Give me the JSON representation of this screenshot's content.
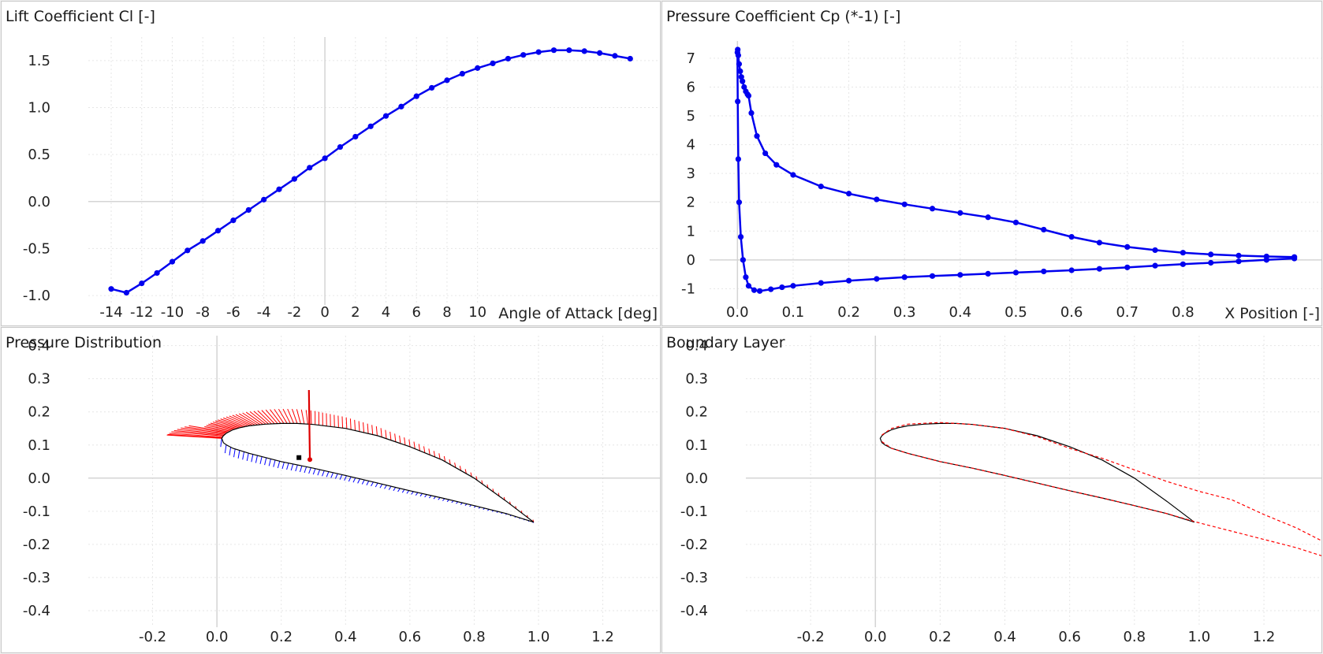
{
  "colors": {
    "series": "#0000ee",
    "suction": "#ff0000",
    "pressure": "#0000ff",
    "airfoil": "#000000",
    "grid": "#e6e6e6",
    "axis": "#d4d4d4"
  },
  "chart_data": [
    {
      "type": "line",
      "title": "Lift Coefficient Cl [-]",
      "xlabel": "Angle of Attack [deg]",
      "ylabel": "",
      "xlim": [
        -15.5,
        22
      ],
      "ylim": [
        -1.1,
        1.75
      ],
      "xticks": [
        -14,
        -12,
        -10,
        -8,
        -6,
        -4,
        -2,
        0,
        2,
        4,
        6,
        8,
        10
      ],
      "yticks": [
        -1.0,
        -0.5,
        0.0,
        0.5,
        1.0,
        1.5
      ],
      "xtick_labels": [
        "-14",
        "-12",
        "-10",
        "-8",
        "-6",
        "-4",
        "-2",
        "0",
        "2",
        "4",
        "6",
        "8",
        "10"
      ],
      "ytick_labels": [
        "-1.0",
        "-0.5",
        "0.0",
        "0.5",
        "1.0",
        "1.5"
      ],
      "grid": true,
      "series": [
        {
          "x": [
            -14.0,
            -13.0,
            -12.0,
            -11.0,
            -10.0,
            -9.0,
            -8.0,
            -7.0,
            -6.0,
            -5.0,
            -4.0,
            -3.0,
            -2.0,
            -1.0,
            0.0,
            1.0,
            2.0,
            3.0,
            4.0,
            5.0,
            6.0,
            7.0,
            8.0,
            9.0,
            10.0,
            11.0,
            12.0,
            13.0,
            14.0,
            15.0,
            16.0,
            17.0,
            18.0,
            19.0,
            20.0
          ],
          "y": [
            -0.93,
            -0.97,
            -0.87,
            -0.76,
            -0.64,
            -0.52,
            -0.42,
            -0.31,
            -0.2,
            -0.09,
            0.02,
            0.13,
            0.24,
            0.36,
            0.46,
            0.58,
            0.69,
            0.8,
            0.91,
            1.01,
            1.12,
            1.21,
            1.29,
            1.36,
            1.42,
            1.47,
            1.52,
            1.56,
            1.59,
            1.61,
            1.61,
            1.6,
            1.58,
            1.55,
            1.52
          ]
        }
      ]
    },
    {
      "type": "line",
      "title": "Pressure Coefficient Cp (*-1) [-]",
      "xlabel": "X Position [-]",
      "ylabel": "",
      "xlim": [
        -0.05,
        1.05
      ],
      "ylim": [
        -1.7,
        7.6
      ],
      "xticks": [
        0.0,
        0.1,
        0.2,
        0.3,
        0.4,
        0.5,
        0.6,
        0.7,
        0.8
      ],
      "yticks": [
        -1,
        0,
        1,
        2,
        3,
        4,
        5,
        6,
        7
      ],
      "xtick_labels": [
        "0.0",
        "0.1",
        "0.2",
        "0.3",
        "0.4",
        "0.5",
        "0.6",
        "0.7",
        "0.8"
      ],
      "ytick_labels": [
        "-1",
        "0",
        "1",
        "2",
        "3",
        "4",
        "5",
        "6",
        "7"
      ],
      "grid": true,
      "series": [
        {
          "name": "upper",
          "x": [
            1.0,
            0.95,
            0.9,
            0.85,
            0.8,
            0.75,
            0.7,
            0.65,
            0.6,
            0.55,
            0.5,
            0.45,
            0.4,
            0.35,
            0.3,
            0.25,
            0.2,
            0.15,
            0.1,
            0.07,
            0.05,
            0.035,
            0.025,
            0.02,
            0.018,
            0.015,
            0.012,
            0.009,
            0.007,
            0.005,
            0.003,
            0.0015,
            0.0005
          ],
          "y": [
            0.1,
            0.12,
            0.15,
            0.19,
            0.25,
            0.34,
            0.45,
            0.6,
            0.8,
            1.05,
            1.3,
            1.48,
            1.63,
            1.78,
            1.93,
            2.1,
            2.3,
            2.55,
            2.95,
            3.3,
            3.7,
            4.3,
            5.1,
            5.7,
            5.75,
            5.85,
            6.0,
            6.2,
            6.35,
            6.55,
            6.8,
            7.1,
            7.3
          ]
        },
        {
          "name": "lower",
          "x": [
            0.0,
            0.0005,
            0.0015,
            0.003,
            0.006,
            0.01,
            0.015,
            0.02,
            0.03,
            0.04,
            0.06,
            0.08,
            0.1,
            0.15,
            0.2,
            0.25,
            0.3,
            0.35,
            0.4,
            0.45,
            0.5,
            0.55,
            0.6,
            0.65,
            0.7,
            0.75,
            0.8,
            0.85,
            0.9,
            0.95,
            1.0
          ],
          "y": [
            7.2,
            5.5,
            3.5,
            2.0,
            0.8,
            0.0,
            -0.6,
            -0.9,
            -1.05,
            -1.08,
            -1.02,
            -0.95,
            -0.9,
            -0.8,
            -0.72,
            -0.66,
            -0.6,
            -0.56,
            -0.52,
            -0.48,
            -0.44,
            -0.4,
            -0.36,
            -0.31,
            -0.26,
            -0.2,
            -0.15,
            -0.1,
            -0.05,
            0.0,
            0.05
          ]
        }
      ]
    },
    {
      "type": "line",
      "title": "Pressure Distribution",
      "xlabel": "",
      "ylabel": "",
      "xlim": [
        -0.4,
        1.38
      ],
      "ylim": [
        -0.45,
        0.43
      ],
      "xticks": [
        -0.2,
        0.0,
        0.2,
        0.4,
        0.6,
        0.8,
        1.0,
        1.2
      ],
      "yticks": [
        -0.4,
        -0.3,
        -0.2,
        -0.1,
        0.0,
        0.1,
        0.2,
        0.3,
        0.4
      ],
      "xtick_labels": [
        "-0.2",
        "0.0",
        "0.2",
        "0.4",
        "0.6",
        "0.8",
        "1.0",
        "1.2"
      ],
      "ytick_labels": [
        "-0.4",
        "-0.3",
        "-0.2",
        "-0.1",
        "0.0",
        "0.1",
        "0.2",
        "0.3",
        "0.4"
      ],
      "grid": true,
      "airfoil_upper": {
        "x": [
          0.985,
          0.9,
          0.8,
          0.7,
          0.6,
          0.5,
          0.4,
          0.3,
          0.25,
          0.2,
          0.15,
          0.1,
          0.07,
          0.05,
          0.03,
          0.02,
          0.015
        ],
        "y": [
          -0.133,
          -0.07,
          0.0,
          0.055,
          0.095,
          0.128,
          0.15,
          0.162,
          0.165,
          0.165,
          0.163,
          0.158,
          0.152,
          0.146,
          0.136,
          0.128,
          0.12
        ]
      },
      "airfoil_lower": {
        "x": [
          0.015,
          0.02,
          0.03,
          0.05,
          0.1,
          0.2,
          0.3,
          0.4,
          0.5,
          0.6,
          0.7,
          0.8,
          0.9,
          0.985
        ],
        "y": [
          0.12,
          0.107,
          0.1,
          0.09,
          0.075,
          0.05,
          0.03,
          0.008,
          -0.015,
          -0.038,
          -0.06,
          -0.083,
          -0.107,
          -0.133
        ]
      },
      "center_of_pressure": [
        0.289,
        0.056
      ],
      "aerodynamic_center": [
        0.255,
        0.062
      ]
    },
    {
      "type": "line",
      "title": "Boundary Layer",
      "xlabel": "",
      "ylabel": "",
      "xlim": [
        -0.4,
        1.38
      ],
      "ylim": [
        -0.45,
        0.43
      ],
      "xticks": [
        -0.2,
        0.0,
        0.2,
        0.4,
        0.6,
        0.8,
        1.0,
        1.2
      ],
      "yticks": [
        -0.4,
        -0.3,
        -0.2,
        -0.1,
        0.0,
        0.1,
        0.2,
        0.3,
        0.4
      ],
      "xtick_labels": [
        "-0.2",
        "0.0",
        "0.2",
        "0.4",
        "0.6",
        "0.8",
        "1.0",
        "1.2"
      ],
      "ytick_labels": [
        "-0.4",
        "-0.3",
        "-0.2",
        "-0.1",
        "0.0",
        "0.1",
        "0.2",
        "0.3",
        "0.4"
      ],
      "grid": true,
      "airfoil_upper": {
        "x": [
          0.985,
          0.9,
          0.8,
          0.7,
          0.6,
          0.5,
          0.4,
          0.3,
          0.25,
          0.2,
          0.15,
          0.1,
          0.07,
          0.05,
          0.03,
          0.02,
          0.015
        ],
        "y": [
          -0.133,
          -0.07,
          0.0,
          0.055,
          0.095,
          0.128,
          0.15,
          0.162,
          0.165,
          0.165,
          0.163,
          0.158,
          0.152,
          0.146,
          0.136,
          0.128,
          0.12
        ]
      },
      "airfoil_lower": {
        "x": [
          0.015,
          0.02,
          0.03,
          0.05,
          0.1,
          0.2,
          0.3,
          0.4,
          0.5,
          0.6,
          0.7,
          0.8,
          0.9,
          0.985
        ],
        "y": [
          0.12,
          0.107,
          0.1,
          0.09,
          0.075,
          0.05,
          0.03,
          0.008,
          -0.015,
          -0.038,
          -0.06,
          -0.083,
          -0.107,
          -0.133
        ]
      },
      "bl_upper": {
        "x": [
          0.02,
          0.05,
          0.1,
          0.2,
          0.3,
          0.4,
          0.5,
          0.6,
          0.7,
          0.8,
          0.9,
          1.0,
          1.1,
          1.2,
          1.3,
          1.38
        ],
        "y": [
          0.13,
          0.15,
          0.163,
          0.168,
          0.162,
          0.15,
          0.125,
          0.09,
          0.06,
          0.025,
          -0.01,
          -0.04,
          -0.065,
          -0.11,
          -0.15,
          -0.19
        ]
      },
      "bl_lower": {
        "x": [
          0.02,
          0.05,
          0.1,
          0.2,
          0.3,
          0.4,
          0.5,
          0.6,
          0.7,
          0.8,
          0.9,
          1.0,
          1.1,
          1.2,
          1.3,
          1.38
        ],
        "y": [
          0.11,
          0.09,
          0.075,
          0.05,
          0.03,
          0.008,
          -0.015,
          -0.038,
          -0.06,
          -0.083,
          -0.107,
          -0.135,
          -0.16,
          -0.185,
          -0.21,
          -0.235
        ]
      }
    }
  ]
}
